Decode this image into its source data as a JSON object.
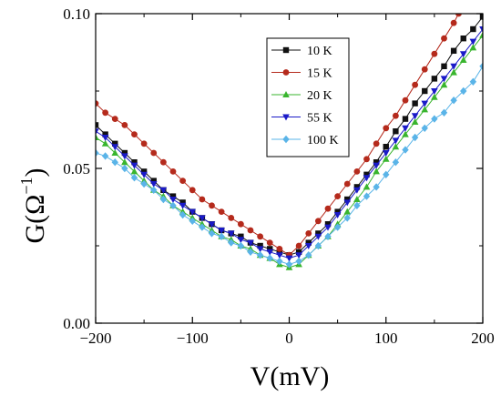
{
  "chart_data": {
    "type": "line",
    "xlabel": "V(mV)",
    "ylabel_main": "G(Ω",
    "ylabel_sup": "−1",
    "ylabel_close": ")",
    "xlim": [
      -200,
      200
    ],
    "ylim": [
      0,
      0.1
    ],
    "x_ticks": [
      -200,
      -100,
      0,
      100,
      200
    ],
    "x_tick_labels": [
      "−200",
      "−100",
      "0",
      "100",
      "200"
    ],
    "y_ticks": [
      0,
      0.05,
      0.1
    ],
    "y_tick_labels": [
      "0.00",
      "0.05",
      "0.10"
    ],
    "legend_position": "top-right inside",
    "series": [
      {
        "name": "10 K",
        "color": "#111111",
        "marker": "square",
        "x": [
          -200,
          -190,
          -180,
          -170,
          -160,
          -150,
          -140,
          -130,
          -120,
          -110,
          -100,
          -90,
          -80,
          -70,
          -60,
          -50,
          -40,
          -30,
          -20,
          -10,
          0,
          10,
          20,
          30,
          40,
          50,
          60,
          70,
          80,
          90,
          100,
          110,
          120,
          130,
          140,
          150,
          160,
          170,
          180,
          190,
          200
        ],
        "y": [
          0.064,
          0.061,
          0.058,
          0.055,
          0.052,
          0.049,
          0.046,
          0.043,
          0.041,
          0.039,
          0.036,
          0.034,
          0.032,
          0.03,
          0.029,
          0.028,
          0.026,
          0.025,
          0.024,
          0.023,
          0.022,
          0.023,
          0.026,
          0.029,
          0.032,
          0.036,
          0.04,
          0.044,
          0.048,
          0.052,
          0.057,
          0.062,
          0.066,
          0.071,
          0.075,
          0.079,
          0.083,
          0.088,
          0.092,
          0.095,
          0.099
        ]
      },
      {
        "name": "15 K",
        "color": "#b52a1c",
        "marker": "circle",
        "x": [
          -200,
          -190,
          -180,
          -170,
          -160,
          -150,
          -140,
          -130,
          -120,
          -110,
          -100,
          -90,
          -80,
          -70,
          -60,
          -50,
          -40,
          -30,
          -20,
          -10,
          0,
          10,
          20,
          30,
          40,
          50,
          60,
          70,
          80,
          90,
          100,
          110,
          120,
          130,
          140,
          150,
          160,
          170,
          175
        ],
        "y": [
          0.071,
          0.068,
          0.066,
          0.064,
          0.061,
          0.058,
          0.055,
          0.052,
          0.049,
          0.046,
          0.043,
          0.04,
          0.038,
          0.036,
          0.034,
          0.032,
          0.03,
          0.028,
          0.026,
          0.024,
          0.022,
          0.025,
          0.029,
          0.033,
          0.037,
          0.041,
          0.045,
          0.049,
          0.053,
          0.058,
          0.063,
          0.067,
          0.072,
          0.077,
          0.082,
          0.087,
          0.092,
          0.097,
          0.1
        ]
      },
      {
        "name": "20 K",
        "color": "#39b52e",
        "marker": "triangle-up",
        "x": [
          -200,
          -190,
          -180,
          -170,
          -160,
          -150,
          -140,
          -130,
          -120,
          -110,
          -100,
          -90,
          -80,
          -70,
          -60,
          -50,
          -40,
          -30,
          -20,
          -10,
          0,
          10,
          20,
          30,
          40,
          50,
          60,
          70,
          80,
          90,
          100,
          110,
          120,
          130,
          140,
          150,
          160,
          170,
          180,
          190,
          200
        ],
        "y": [
          0.06,
          0.058,
          0.055,
          0.052,
          0.049,
          0.046,
          0.043,
          0.041,
          0.038,
          0.036,
          0.034,
          0.032,
          0.03,
          0.028,
          0.027,
          0.025,
          0.024,
          0.022,
          0.021,
          0.019,
          0.018,
          0.019,
          0.022,
          0.025,
          0.028,
          0.032,
          0.036,
          0.04,
          0.044,
          0.049,
          0.053,
          0.057,
          0.061,
          0.065,
          0.069,
          0.073,
          0.077,
          0.081,
          0.085,
          0.089,
          0.093
        ]
      },
      {
        "name": "55 K",
        "color": "#1a1ac8",
        "marker": "triangle-down",
        "x": [
          -200,
          -190,
          -180,
          -170,
          -160,
          -150,
          -140,
          -130,
          -120,
          -110,
          -100,
          -90,
          -80,
          -70,
          -60,
          -50,
          -40,
          -30,
          -20,
          -10,
          0,
          10,
          20,
          30,
          40,
          50,
          60,
          70,
          80,
          90,
          100,
          110,
          120,
          130,
          140,
          150,
          160,
          170,
          180,
          190,
          200
        ],
        "y": [
          0.062,
          0.06,
          0.057,
          0.054,
          0.051,
          0.048,
          0.045,
          0.043,
          0.04,
          0.038,
          0.036,
          0.034,
          0.032,
          0.03,
          0.029,
          0.027,
          0.026,
          0.024,
          0.023,
          0.022,
          0.021,
          0.022,
          0.025,
          0.028,
          0.031,
          0.035,
          0.039,
          0.043,
          0.047,
          0.051,
          0.055,
          0.059,
          0.063,
          0.067,
          0.071,
          0.075,
          0.079,
          0.083,
          0.087,
          0.091,
          0.095
        ]
      },
      {
        "name": "100 K",
        "color": "#5ab4e8",
        "marker": "diamond",
        "x": [
          -200,
          -190,
          -180,
          -170,
          -160,
          -150,
          -140,
          -130,
          -120,
          -110,
          -100,
          -90,
          -80,
          -70,
          -60,
          -50,
          -40,
          -30,
          -20,
          -10,
          0,
          10,
          20,
          30,
          40,
          50,
          60,
          70,
          80,
          90,
          100,
          110,
          120,
          130,
          140,
          150,
          160,
          170,
          180,
          190,
          200
        ],
        "y": [
          0.055,
          0.054,
          0.052,
          0.05,
          0.047,
          0.045,
          0.043,
          0.04,
          0.038,
          0.035,
          0.033,
          0.031,
          0.029,
          0.028,
          0.026,
          0.025,
          0.023,
          0.022,
          0.021,
          0.02,
          0.019,
          0.02,
          0.022,
          0.025,
          0.028,
          0.031,
          0.034,
          0.038,
          0.041,
          0.044,
          0.048,
          0.052,
          0.056,
          0.06,
          0.063,
          0.066,
          0.068,
          0.072,
          0.075,
          0.078,
          0.083
        ]
      }
    ]
  }
}
